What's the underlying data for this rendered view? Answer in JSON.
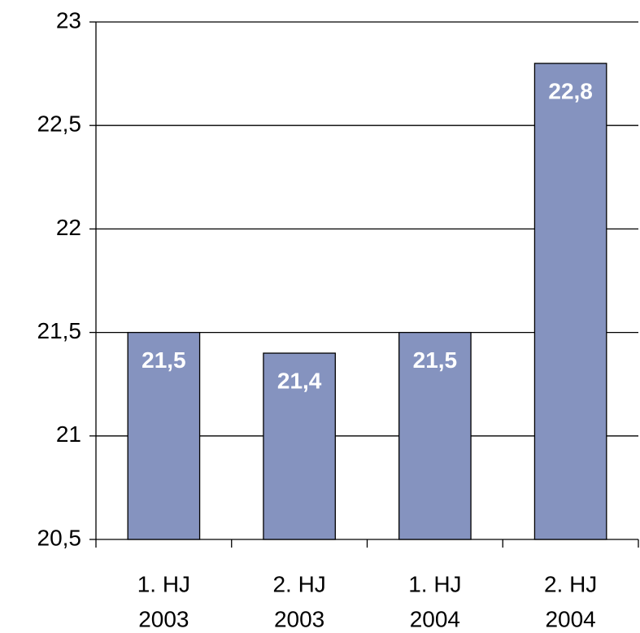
{
  "chart_data": {
    "type": "bar",
    "categories": [
      [
        "1. HJ",
        "2003"
      ],
      [
        "2. HJ",
        "2003"
      ],
      [
        "1. HJ",
        "2004"
      ],
      [
        "2. HJ",
        "2004"
      ]
    ],
    "values": [
      21.5,
      21.4,
      21.5,
      22.8
    ],
    "value_labels": [
      "21,5",
      "21,4",
      "21,5",
      "22,8"
    ],
    "color": "#8593bf",
    "ylim": [
      20.5,
      23
    ],
    "yticks": [
      {
        "value": 20.5,
        "label": "20,5"
      },
      21,
      {
        "value": 21.5,
        "label": "21,5"
      },
      22,
      {
        "value": 22.5,
        "label": "22,5"
      },
      23
    ],
    "grid": true
  }
}
